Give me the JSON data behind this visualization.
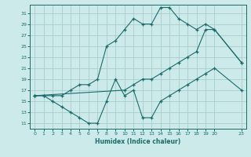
{
  "title": "",
  "xlabel": "Humidex (Indice chaleur)",
  "bg_color": "#cceaea",
  "grid_color": "#aacccc",
  "line_color": "#1a6b6b",
  "xlim": [
    -0.5,
    23.5
  ],
  "ylim": [
    10.0,
    32.5
  ],
  "xticks": [
    0,
    1,
    2,
    3,
    4,
    5,
    6,
    7,
    8,
    9,
    10,
    11,
    12,
    13,
    14,
    15,
    16,
    17,
    18,
    19,
    20,
    23
  ],
  "yticks": [
    11,
    13,
    15,
    17,
    19,
    21,
    23,
    25,
    27,
    29,
    31
  ],
  "line1_x": [
    0,
    1,
    2,
    3,
    4,
    5,
    6,
    7,
    8,
    9,
    10,
    11,
    12,
    13,
    14,
    15,
    16,
    17,
    18,
    19,
    20,
    23
  ],
  "line1_y": [
    16,
    16,
    16,
    16,
    17,
    18,
    18,
    19,
    25,
    26,
    28,
    30,
    29,
    29,
    32,
    32,
    30,
    29,
    28,
    29,
    28,
    22
  ],
  "line2_x": [
    0,
    10,
    11,
    12,
    13,
    14,
    15,
    16,
    17,
    18,
    19,
    20,
    23
  ],
  "line2_y": [
    16,
    17,
    18,
    19,
    19,
    20,
    21,
    22,
    23,
    24,
    28,
    28,
    22
  ],
  "line3_x": [
    0,
    1,
    2,
    3,
    4,
    5,
    6,
    7,
    8,
    9,
    10,
    11,
    12,
    13,
    14,
    15,
    16,
    17,
    18,
    19,
    20,
    23
  ],
  "line3_y": [
    16,
    16,
    15,
    14,
    13,
    12,
    11,
    11,
    15,
    19,
    16,
    17,
    12,
    12,
    15,
    16,
    17,
    18,
    19,
    20,
    21,
    17
  ]
}
